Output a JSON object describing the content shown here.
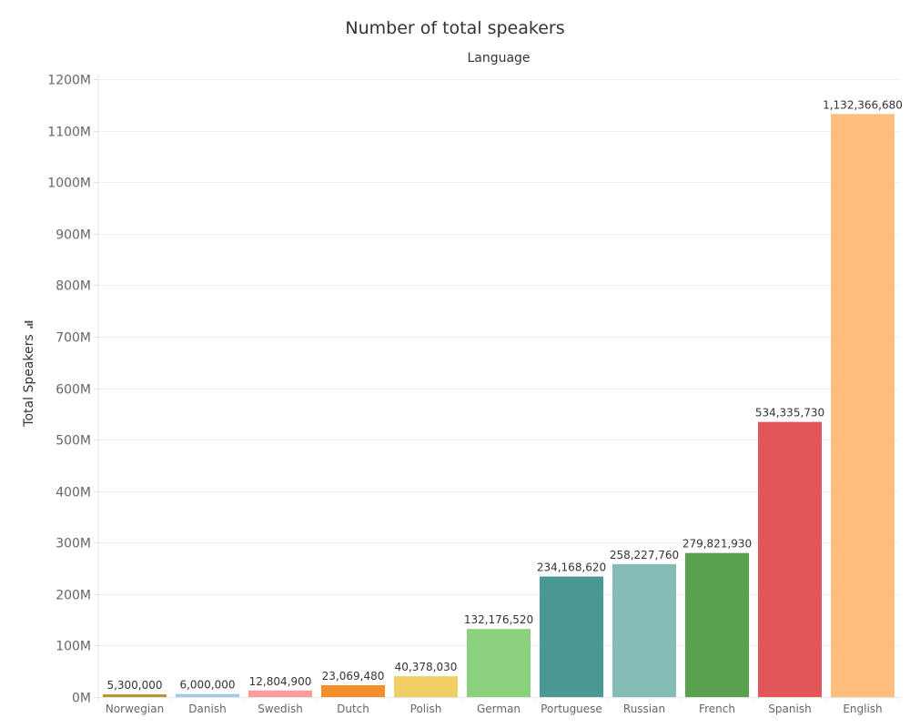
{
  "chart_data": {
    "type": "bar",
    "title": "Number of total speakers",
    "column_header": "Language",
    "xlabel": "",
    "ylabel": "Total Speakers",
    "ylabel_icon": "sort-descending-icon",
    "ylim": [
      0,
      1200000000
    ],
    "yticks": [
      0,
      100000000,
      200000000,
      300000000,
      400000000,
      500000000,
      600000000,
      700000000,
      800000000,
      900000000,
      1000000000,
      1100000000,
      1200000000
    ],
    "ytick_labels": [
      "0M",
      "100M",
      "200M",
      "300M",
      "400M",
      "500M",
      "600M",
      "700M",
      "800M",
      "900M",
      "1000M",
      "1100M",
      "1200M"
    ],
    "grid": true,
    "categories": [
      "Norwegian",
      "Danish",
      "Swedish",
      "Dutch",
      "Polish",
      "German",
      "Portuguese",
      "Russian",
      "French",
      "Spanish",
      "English"
    ],
    "values": [
      5300000,
      6000000,
      12804900,
      23069480,
      40378030,
      132176520,
      234168620,
      258227760,
      279821930,
      534335730,
      1132366680
    ],
    "data_labels": [
      "5,300,000",
      "6,000,000",
      "12,804,900",
      "23,069,480",
      "40,378,030",
      "132,176,520",
      "234,168,620",
      "258,227,760",
      "279,821,930",
      "534,335,730",
      "1,132,366,680"
    ],
    "colors": [
      "#b9962f",
      "#a0cbe8",
      "#ff9d9a",
      "#f28e2b",
      "#f1ce63",
      "#8cd17d",
      "#499894",
      "#86bcb6",
      "#59a14f",
      "#e15759",
      "#ffbe7d"
    ]
  }
}
